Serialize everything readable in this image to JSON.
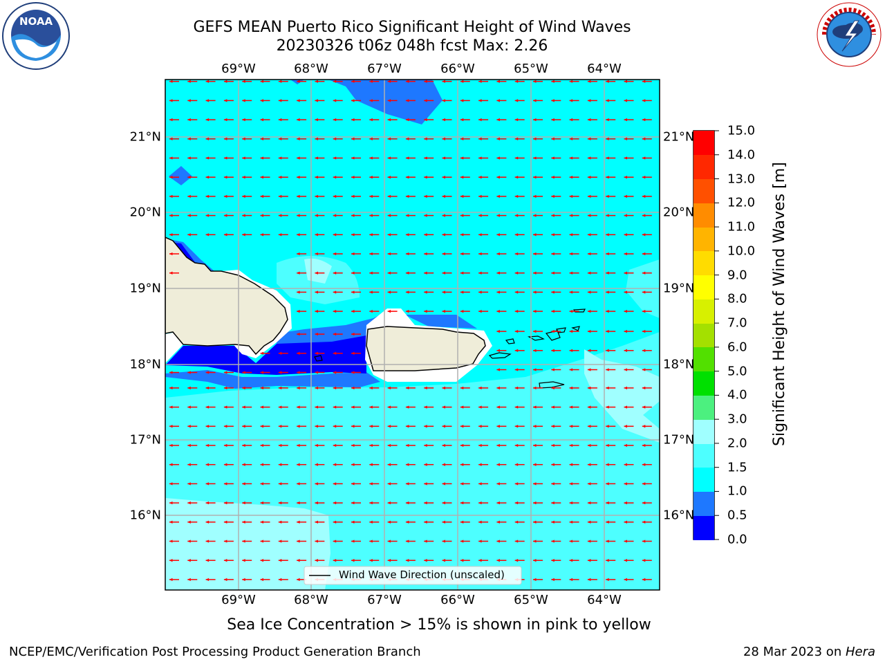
{
  "header": {
    "title_line1": "GEFS MEAN Puerto Rico Significant Height of Wind Waves",
    "title_line2": "20230326 t06z 048h fcst   Max: 2.26"
  },
  "logos": {
    "left": "noaa-logo",
    "right": "national-weather-service-logo"
  },
  "map": {
    "lon_labels": [
      "69°W",
      "68°W",
      "67°W",
      "66°W",
      "65°W",
      "64°W"
    ],
    "lat_labels": [
      "21°N",
      "20°N",
      "19°N",
      "18°N",
      "17°N",
      "16°N"
    ],
    "legend_label": "Wind Wave Direction (unscaled)",
    "arrow_color": "#ff0000",
    "land_color": "#efedd9"
  },
  "colorbar": {
    "label": "Significant Height of Wind Waves [m]",
    "ticks": [
      "0.0",
      "0.5",
      "1.0",
      "1.5",
      "2.0",
      "3.0",
      "4.0",
      "5.0",
      "6.0",
      "7.0",
      "8.0",
      "9.0",
      "10.0",
      "11.0",
      "12.0",
      "13.0",
      "14.0",
      "15.0"
    ],
    "colors": [
      "#0000ff",
      "#1e78ff",
      "#00ffff",
      "#4dffff",
      "#a0ffff",
      "#4cf07f",
      "#00e000",
      "#52e000",
      "#a4e000",
      "#d7f000",
      "#ffff00",
      "#ffdc00",
      "#ffb400",
      "#ff8c00",
      "#ff5000",
      "#ff2800",
      "#ff0000"
    ]
  },
  "footer": {
    "ice_note": "Sea Ice Concentration > 15% is shown in pink to yellow",
    "branch": "NCEP/EMC/Verification Post Processing Product Generation Branch",
    "date": "28 Mar 2023 on ",
    "machine": "Hera"
  }
}
